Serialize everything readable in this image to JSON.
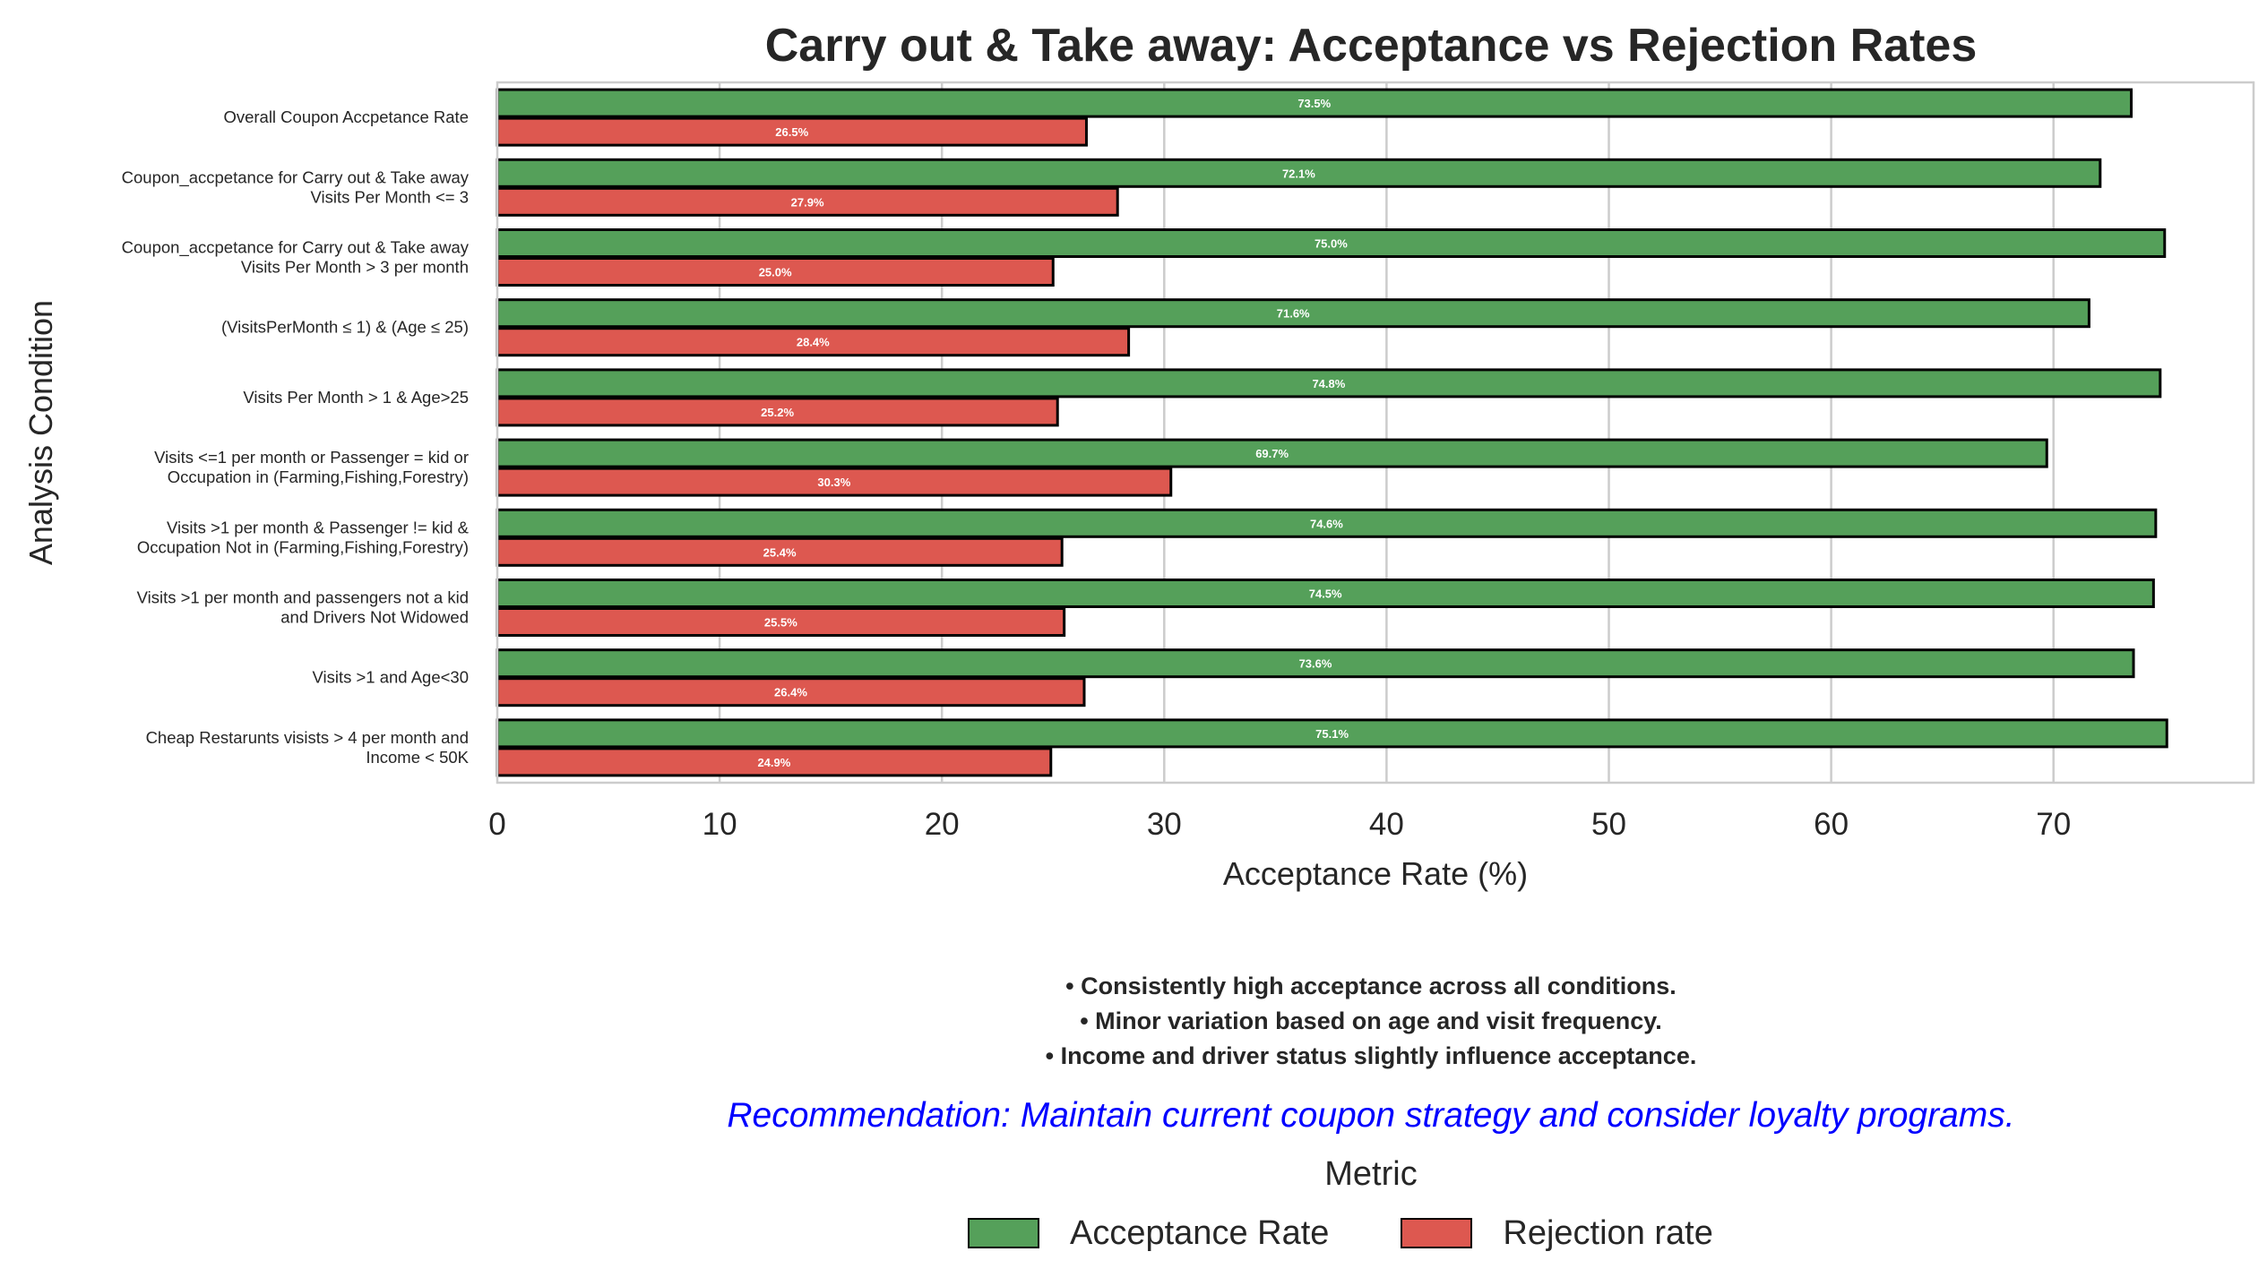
{
  "chart_data": {
    "type": "bar",
    "orientation": "horizontal",
    "title": "Carry out & Take away: Acceptance vs Rejection Rates",
    "xlabel": "Acceptance Rate (%)",
    "ylabel": "Analysis Condition",
    "xlim": [
      0,
      79
    ],
    "xticks": [
      "0",
      "10",
      "20",
      "30",
      "40",
      "50",
      "60",
      "70"
    ],
    "grid": true,
    "categories": [
      [
        "Overall Coupon Accpetance Rate"
      ],
      [
        "Coupon_accpetance for Carry out & Take away",
        "Visits Per Month <= 3"
      ],
      [
        "Coupon_accpetance for Carry out & Take away",
        "Visits Per Month > 3 per month"
      ],
      [
        "(VisitsPerMonth ≤ 1) & (Age ≤ 25)"
      ],
      [
        "Visits Per Month > 1 & Age>25"
      ],
      [
        "Visits <=1 per month or Passenger = kid or",
        "Occupation in (Farming,Fishing,Forestry)"
      ],
      [
        "Visits >1 per month & Passenger != kid &",
        "Occupation Not in (Farming,Fishing,Forestry)"
      ],
      [
        "Visits >1 per month and passengers not a kid",
        "and Drivers Not Widowed"
      ],
      [
        "Visits >1 and Age<30"
      ],
      [
        "Cheap Restarunts visists > 4 per month and",
        "Income < 50K"
      ]
    ],
    "series": [
      {
        "name": "Acceptance Rate",
        "color": "#55a05a",
        "values": [
          73.5,
          72.1,
          75.0,
          71.6,
          74.8,
          69.7,
          74.6,
          74.5,
          73.6,
          75.1
        ],
        "labels": [
          "73.5%",
          "72.1%",
          "75.0%",
          "71.6%",
          "74.8%",
          "69.7%",
          "74.6%",
          "74.5%",
          "73.6%",
          "75.1%"
        ]
      },
      {
        "name": "Rejection rate",
        "color": "#dd5850",
        "values": [
          26.5,
          27.9,
          25.0,
          28.4,
          25.2,
          30.3,
          25.4,
          25.5,
          26.4,
          24.9
        ],
        "labels": [
          "26.5%",
          "27.9%",
          "25.0%",
          "28.4%",
          "25.2%",
          "30.3%",
          "25.4%",
          "25.5%",
          "26.4%",
          "24.9%"
        ]
      }
    ],
    "legend": {
      "title": "Metric",
      "placement": "bottom-center"
    }
  },
  "notes": [
    "• Consistently high acceptance across all conditions.",
    "• Minor variation based on age and visit frequency.",
    "• Income and driver status slightly influence acceptance."
  ],
  "recommendation": "Recommendation: Maintain current coupon strategy and consider loyalty programs.",
  "legend": {
    "title": "Metric",
    "items": [
      {
        "label": "Acceptance Rate",
        "color": "#55a05a"
      },
      {
        "label": "Rejection rate",
        "color": "#dd5850"
      }
    ]
  }
}
